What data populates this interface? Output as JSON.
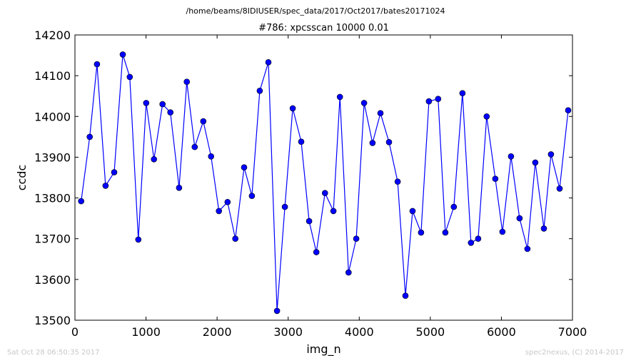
{
  "figure": {
    "suptitle": "/home/beams/8IDIUSER/spec_data/2017/Oct2017/bates20171024",
    "footer_left": "Sat Oct 28 06:50:35 2017",
    "footer_right": "spec2nexus, (C) 2014-2017"
  },
  "chart_data": {
    "type": "line",
    "title": "#786: xpcsscan 10000 0.01",
    "xlabel": "img_n",
    "ylabel": "ccdc",
    "xlim": [
      0,
      7000
    ],
    "ylim": [
      13500,
      14200
    ],
    "xticks": [
      0,
      1000,
      2000,
      3000,
      4000,
      5000,
      6000,
      7000
    ],
    "yticks": [
      13500,
      13600,
      13700,
      13800,
      13900,
      14000,
      14100,
      14200
    ],
    "grid": false,
    "line_color": "#0000ff",
    "marker_color": "#0000ff",
    "x": [
      87,
      208,
      310,
      431,
      552,
      673,
      771,
      892,
      1002,
      1112,
      1232,
      1343,
      1465,
      1574,
      1685,
      1806,
      1915,
      2026,
      2147,
      2257,
      2380,
      2490,
      2600,
      2722,
      2843,
      2954,
      3064,
      3184,
      3295,
      3397,
      3518,
      3637,
      3728,
      3849,
      3958,
      4068,
      4187,
      4298,
      4419,
      4540,
      4650,
      4750,
      4870,
      4980,
      5110,
      5211,
      5331,
      5452,
      5572,
      5673,
      5793,
      5914,
      6015,
      6135,
      6256,
      6366,
      6477,
      6598,
      6698,
      6819,
      6940
    ],
    "y": [
      13792,
      13950,
      14128,
      13830,
      13863,
      14152,
      14097,
      13698,
      14033,
      13895,
      14030,
      14010,
      13825,
      14085,
      13925,
      13988,
      13902,
      13768,
      13790,
      13700,
      13875,
      13805,
      14063,
      14133,
      13523,
      13778,
      14020,
      13938,
      13743,
      13667,
      13812,
      13768,
      14048,
      13617,
      13700,
      14033,
      13935,
      14008,
      13937,
      13840,
      13560,
      13768,
      13715,
      14037,
      14043,
      13715,
      13778,
      14057,
      13690,
      13700,
      14000,
      13847,
      13717,
      13902,
      13750,
      13675,
      13887,
      13725,
      13907,
      13823,
      14015
    ]
  }
}
